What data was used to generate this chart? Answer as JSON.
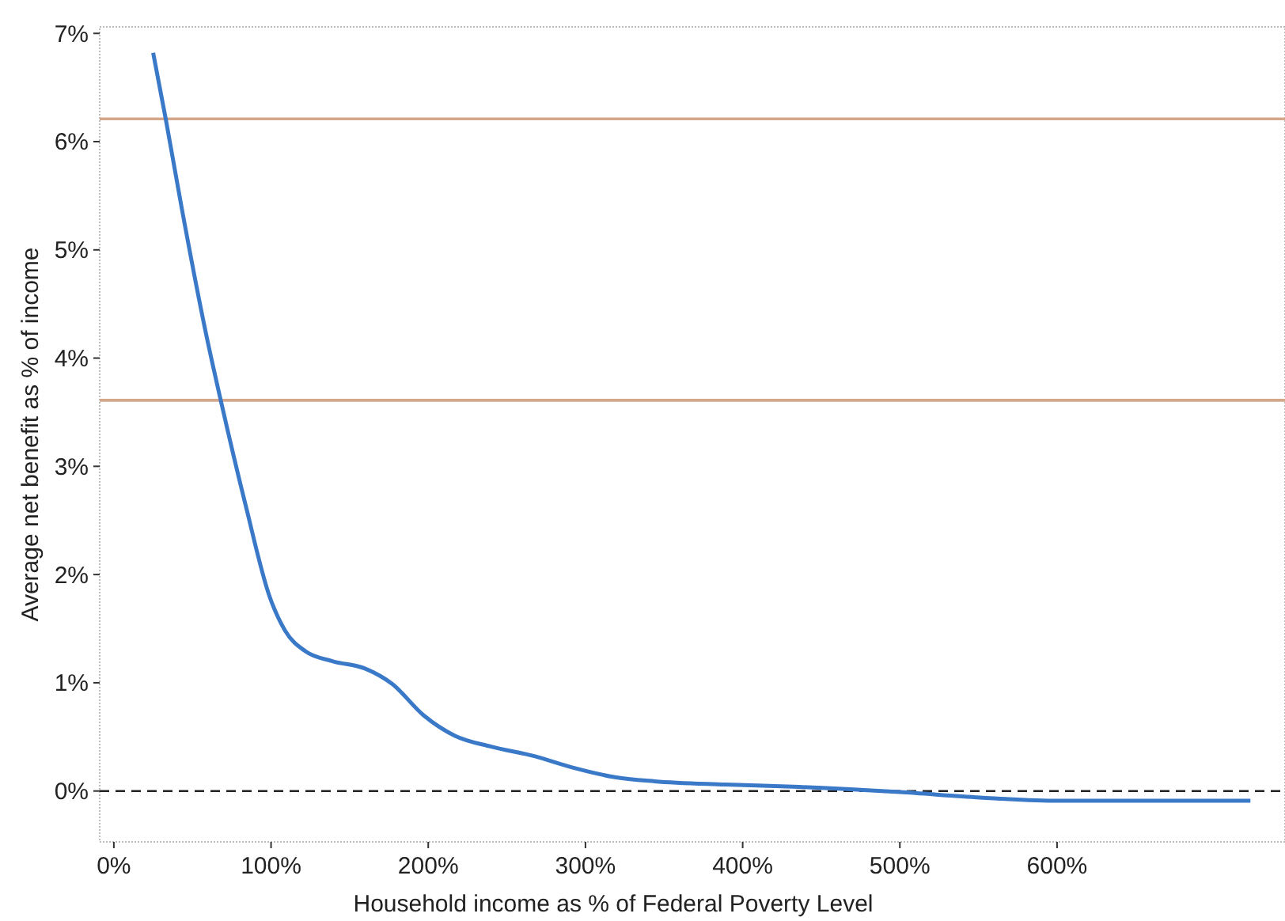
{
  "chart_data": {
    "type": "line",
    "xlabel": "Household income as % of Federal Poverty Level",
    "ylabel": "Average net benefit as % of income",
    "xlim": [
      -9,
      745
    ],
    "ylim": [
      -0.47,
      7.06
    ],
    "xticks": [
      {
        "value": 0,
        "label": "0%"
      },
      {
        "value": 100,
        "label": "100%"
      },
      {
        "value": 200,
        "label": "200%"
      },
      {
        "value": 300,
        "label": "300%"
      },
      {
        "value": 400,
        "label": "400%"
      },
      {
        "value": 500,
        "label": "500%"
      },
      {
        "value": 600,
        "label": "600%"
      }
    ],
    "yticks": [
      {
        "value": 0,
        "label": "0%"
      },
      {
        "value": 1,
        "label": "1%"
      },
      {
        "value": 2,
        "label": "2%"
      },
      {
        "value": 3,
        "label": "3%"
      },
      {
        "value": 4,
        "label": "4%"
      },
      {
        "value": 5,
        "label": "5%"
      },
      {
        "value": 6,
        "label": "6%"
      },
      {
        "value": 7,
        "label": "7%"
      }
    ],
    "grid": false,
    "marker": "none",
    "line_style": "solid",
    "series": [
      {
        "color": "#3a78c8",
        "x": [
          25,
          33,
          43,
          59,
          68,
          84,
          99,
          109,
          122,
          139,
          160,
          177,
          197,
          217,
          240,
          268,
          291,
          318,
          344,
          389,
          432,
          500,
          551,
          601,
          723
        ],
        "values": [
          6.82,
          6.21,
          5.4,
          4.2,
          3.61,
          2.63,
          1.8,
          1.48,
          1.29,
          1.2,
          1.13,
          0.99,
          0.7,
          0.51,
          0.41,
          0.32,
          0.22,
          0.13,
          0.09,
          0.06,
          0.04,
          -0.01,
          -0.06,
          -0.09,
          -0.09
        ]
      }
    ],
    "ref_lines": [
      {
        "axis": "y",
        "value": 6.21,
        "color": "#d4a68a",
        "line_style": "solid"
      },
      {
        "axis": "y",
        "value": 3.61,
        "color": "#d4a68a",
        "line_style": "solid"
      },
      {
        "axis": "y",
        "value": 0,
        "color": "#222222",
        "line_style": "dashed"
      }
    ]
  }
}
